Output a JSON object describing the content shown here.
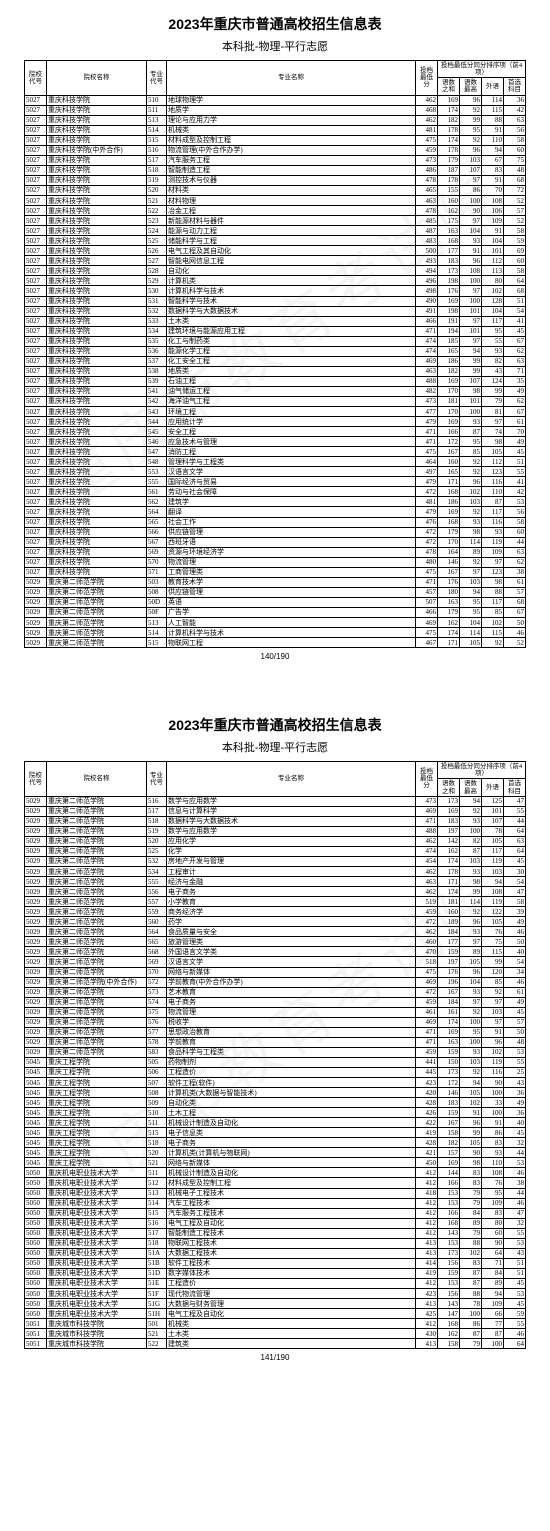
{
  "title": "2023年重庆市普通高校招生信息表",
  "subtitle": "本科批-物理-平行志愿",
  "headers": {
    "school_code": "院校代号",
    "school_name": "院校名称",
    "major_code": "专业代号",
    "major_name": "专业名称",
    "min_score": "投档最低分",
    "group_title": "投档最低分同分排序项（前4项）",
    "s1": "语数之和",
    "s2": "语数最高",
    "s3": "外语",
    "s4": "首选科目"
  },
  "page1_num": "140/190",
  "page2_num": "141/190",
  "watermark": "重庆市教育考试院",
  "page1_rows": [
    [
      "5027",
      "重庆科技学院",
      "510",
      "地球物理学",
      "462",
      "169",
      "96",
      "114",
      "36"
    ],
    [
      "5027",
      "重庆科技学院",
      "511",
      "地质学",
      "468",
      "174",
      "92",
      "115",
      "42"
    ],
    [
      "5027",
      "重庆科技学院",
      "513",
      "理论与应用力学",
      "462",
      "182",
      "99",
      "88",
      "63"
    ],
    [
      "5027",
      "重庆科技学院",
      "514",
      "机械类",
      "481",
      "178",
      "95",
      "91",
      "56"
    ],
    [
      "5027",
      "重庆科技学院",
      "515",
      "材料成型及控制工程",
      "475",
      "174",
      "92",
      "110",
      "58"
    ],
    [
      "5027",
      "重庆科技学院(中外合作)",
      "516",
      "物流管理(中外合作办学)",
      "459",
      "178",
      "96",
      "94",
      "60"
    ],
    [
      "5027",
      "重庆科技学院",
      "517",
      "汽车服务工程",
      "473",
      "179",
      "103",
      "67",
      "75"
    ],
    [
      "5027",
      "重庆科技学院",
      "518",
      "智能制造工程",
      "486",
      "187",
      "107",
      "83",
      "48"
    ],
    [
      "5027",
      "重庆科技学院",
      "519",
      "测控技术与仪器",
      "478",
      "178",
      "97",
      "91",
      "68"
    ],
    [
      "5027",
      "重庆科技学院",
      "520",
      "材料类",
      "465",
      "155",
      "86",
      "70",
      "72"
    ],
    [
      "5027",
      "重庆科技学院",
      "521",
      "材料物理",
      "463",
      "160",
      "100",
      "108",
      "52"
    ],
    [
      "5027",
      "重庆科技学院",
      "522",
      "冶金工程",
      "478",
      "162",
      "90",
      "106",
      "57"
    ],
    [
      "5027",
      "重庆科技学院",
      "523",
      "新能源材料与器件",
      "485",
      "175",
      "97",
      "109",
      "52"
    ],
    [
      "5027",
      "重庆科技学院",
      "524",
      "能源与动力工程",
      "487",
      "163",
      "104",
      "91",
      "58"
    ],
    [
      "5027",
      "重庆科技学院",
      "525",
      "储能科学与工程",
      "483",
      "168",
      "93",
      "104",
      "59"
    ],
    [
      "5027",
      "重庆科技学院",
      "526",
      "电气工程及其自动化",
      "500",
      "177",
      "91",
      "101",
      "69"
    ],
    [
      "5027",
      "重庆科技学院",
      "527",
      "智能电网信息工程",
      "493",
      "183",
      "96",
      "112",
      "60"
    ],
    [
      "5027",
      "重庆科技学院",
      "528",
      "自动化",
      "494",
      "173",
      "108",
      "113",
      "58"
    ],
    [
      "5027",
      "重庆科技学院",
      "529",
      "计算机类",
      "496",
      "198",
      "100",
      "80",
      "64"
    ],
    [
      "5027",
      "重庆科技学院",
      "530",
      "计算机科学与技术",
      "498",
      "176",
      "97",
      "102",
      "68"
    ],
    [
      "5027",
      "重庆科技学院",
      "531",
      "智能科学与技术",
      "490",
      "169",
      "100",
      "128",
      "51"
    ],
    [
      "5027",
      "重庆科技学院",
      "532",
      "数据科学与大数据技术",
      "491",
      "198",
      "101",
      "104",
      "54"
    ],
    [
      "5027",
      "重庆科技学院",
      "533",
      "土木类",
      "466",
      "191",
      "97",
      "117",
      "41"
    ],
    [
      "5027",
      "重庆科技学院",
      "534",
      "建筑环境与能源应用工程",
      "471",
      "194",
      "101",
      "95",
      "45"
    ],
    [
      "5027",
      "重庆科技学院",
      "535",
      "化工与制药类",
      "474",
      "185",
      "97",
      "55",
      "67"
    ],
    [
      "5027",
      "重庆科技学院",
      "536",
      "能源化学工程",
      "474",
      "165",
      "94",
      "93",
      "62"
    ],
    [
      "5027",
      "重庆科技学院",
      "537",
      "化工安全工程",
      "469",
      "186",
      "99",
      "82",
      "63"
    ],
    [
      "5027",
      "重庆科技学院",
      "538",
      "地质类",
      "463",
      "182",
      "99",
      "43",
      "71"
    ],
    [
      "5027",
      "重庆科技学院",
      "539",
      "石油工程",
      "488",
      "169",
      "107",
      "124",
      "35"
    ],
    [
      "5027",
      "重庆科技学院",
      "541",
      "油气储运工程",
      "482",
      "170",
      "98",
      "99",
      "49"
    ],
    [
      "5027",
      "重庆科技学院",
      "542",
      "海洋油气工程",
      "473",
      "181",
      "101",
      "79",
      "62"
    ],
    [
      "5027",
      "重庆科技学院",
      "543",
      "环境工程",
      "477",
      "170",
      "100",
      "81",
      "67"
    ],
    [
      "5027",
      "重庆科技学院",
      "544",
      "应用统计学",
      "479",
      "169",
      "93",
      "97",
      "61"
    ],
    [
      "5027",
      "重庆科技学院",
      "545",
      "安全工程",
      "471",
      "166",
      "87",
      "74",
      "70"
    ],
    [
      "5027",
      "重庆科技学院",
      "546",
      "应急技术与管理",
      "471",
      "172",
      "95",
      "98",
      "49"
    ],
    [
      "5027",
      "重庆科技学院",
      "547",
      "消防工程",
      "475",
      "167",
      "85",
      "105",
      "45"
    ],
    [
      "5027",
      "重庆科技学院",
      "548",
      "管理科学与工程类",
      "464",
      "160",
      "92",
      "112",
      "51"
    ],
    [
      "5027",
      "重庆科技学院",
      "553",
      "汉语言文学",
      "497",
      "165",
      "92",
      "123",
      "55"
    ],
    [
      "5027",
      "重庆科技学院",
      "555",
      "国际经济与贸易",
      "479",
      "171",
      "96",
      "116",
      "41"
    ],
    [
      "5027",
      "重庆科技学院",
      "561",
      "劳动与社会保障",
      "472",
      "168",
      "102",
      "110",
      "42"
    ],
    [
      "5027",
      "重庆科技学院",
      "562",
      "建筑学",
      "481",
      "186",
      "103",
      "87",
      "53"
    ],
    [
      "5027",
      "重庆科技学院",
      "564",
      "翻译",
      "479",
      "169",
      "92",
      "117",
      "56"
    ],
    [
      "5027",
      "重庆科技学院",
      "565",
      "社会工作",
      "476",
      "168",
      "93",
      "116",
      "58"
    ],
    [
      "5027",
      "重庆科技学院",
      "566",
      "供应链管理",
      "472",
      "179",
      "98",
      "93",
      "60"
    ],
    [
      "5027",
      "重庆科技学院",
      "567",
      "西班牙语",
      "472",
      "170",
      "114",
      "119",
      "44"
    ],
    [
      "5027",
      "重庆科技学院",
      "569",
      "资源与环境经济学",
      "478",
      "164",
      "89",
      "109",
      "63"
    ],
    [
      "5027",
      "重庆科技学院",
      "570",
      "物流管理",
      "480",
      "146",
      "92",
      "97",
      "62"
    ],
    [
      "5027",
      "重庆科技学院",
      "571",
      "工商管理类",
      "475",
      "167",
      "97",
      "123",
      "38"
    ],
    [
      "5029",
      "重庆第二师范学院",
      "503",
      "教育技术学",
      "471",
      "176",
      "103",
      "98",
      "61"
    ],
    [
      "5029",
      "重庆第二师范学院",
      "508",
      "供应链管理",
      "457",
      "180",
      "94",
      "88",
      "57"
    ],
    [
      "5029",
      "重庆第二师范学院",
      "50D",
      "英语",
      "507",
      "163",
      "95",
      "117",
      "68"
    ],
    [
      "5029",
      "重庆第二师范学院",
      "50F",
      "广告学",
      "466",
      "179",
      "95",
      "85",
      "67"
    ],
    [
      "5029",
      "重庆第二师范学院",
      "513",
      "人工智能",
      "469",
      "162",
      "104",
      "102",
      "50"
    ],
    [
      "5029",
      "重庆第二师范学院",
      "514",
      "计算机科学与技术",
      "475",
      "174",
      "114",
      "115",
      "46"
    ],
    [
      "5029",
      "重庆第二师范学院",
      "515",
      "物联网工程",
      "467",
      "171",
      "105",
      "92",
      "52"
    ]
  ],
  "page2_rows": [
    [
      "5029",
      "重庆第二师范学院",
      "516",
      "数学与应用数学",
      "473",
      "173",
      "94",
      "125",
      "47"
    ],
    [
      "5029",
      "重庆第二师范学院",
      "517",
      "信息与计算科学",
      "469",
      "169",
      "92",
      "101",
      "55"
    ],
    [
      "5029",
      "重庆第二师范学院",
      "518",
      "数据科学与大数据技术",
      "471",
      "183",
      "93",
      "107",
      "44"
    ],
    [
      "5029",
      "重庆第二师范学院",
      "519",
      "数学与应用数学",
      "488",
      "197",
      "100",
      "78",
      "64"
    ],
    [
      "5029",
      "重庆第二师范学院",
      "520",
      "应用化学",
      "462",
      "142",
      "82",
      "105",
      "63"
    ],
    [
      "5029",
      "重庆第二师范学院",
      "525",
      "化学",
      "474",
      "162",
      "87",
      "117",
      "64"
    ],
    [
      "5029",
      "重庆第二师范学院",
      "532",
      "房地产开发与管理",
      "454",
      "174",
      "103",
      "119",
      "45"
    ],
    [
      "5029",
      "重庆第二师范学院",
      "534",
      "工程审计",
      "462",
      "178",
      "93",
      "103",
      "30"
    ],
    [
      "5029",
      "重庆第二师范学院",
      "555",
      "经济与金融",
      "463",
      "171",
      "98",
      "94",
      "54"
    ],
    [
      "5029",
      "重庆第二师范学院",
      "556",
      "电子商务",
      "462",
      "174",
      "99",
      "108",
      "47"
    ],
    [
      "5029",
      "重庆第二师范学院",
      "557",
      "小学教育",
      "519",
      "181",
      "114",
      "119",
      "58"
    ],
    [
      "5029",
      "重庆第二师范学院",
      "559",
      "商务经济学",
      "459",
      "160",
      "92",
      "122",
      "39"
    ],
    [
      "5029",
      "重庆第二师范学院",
      "560",
      "药学",
      "472",
      "189",
      "96",
      "105",
      "49"
    ],
    [
      "5029",
      "重庆第二师范学院",
      "564",
      "食品质量与安全",
      "462",
      "184",
      "93",
      "76",
      "46"
    ],
    [
      "5029",
      "重庆第二师范学院",
      "565",
      "旅游管理类",
      "460",
      "177",
      "97",
      "75",
      "50"
    ],
    [
      "5029",
      "重庆第二师范学院",
      "568",
      "外国语言文学类",
      "470",
      "159",
      "89",
      "115",
      "40"
    ],
    [
      "5029",
      "重庆第二师范学院",
      "569",
      "汉语言文学",
      "518",
      "197",
      "105",
      "99",
      "54"
    ],
    [
      "5029",
      "重庆第二师范学院",
      "570",
      "网络与新媒体",
      "475",
      "176",
      "96",
      "120",
      "34"
    ],
    [
      "5029",
      "重庆第二师范学院(中外合作)",
      "572",
      "学前教育(中外合作办学)",
      "469",
      "196",
      "104",
      "85",
      "46"
    ],
    [
      "5029",
      "重庆第二师范学院",
      "573",
      "艺术教育",
      "472",
      "167",
      "93",
      "92",
      "61"
    ],
    [
      "5029",
      "重庆第二师范学院",
      "574",
      "电子商务",
      "459",
      "184",
      "97",
      "97",
      "49"
    ],
    [
      "5029",
      "重庆第二师范学院",
      "575",
      "物流管理",
      "461",
      "161",
      "92",
      "103",
      "45"
    ],
    [
      "5029",
      "重庆第二师范学院",
      "576",
      "税收学",
      "469",
      "174",
      "100",
      "97",
      "57"
    ],
    [
      "5029",
      "重庆第二师范学院",
      "577",
      "思想政治教育",
      "471",
      "169",
      "95",
      "91",
      "50"
    ],
    [
      "5029",
      "重庆第二师范学院",
      "578",
      "学前教育",
      "471",
      "163",
      "100",
      "96",
      "48"
    ],
    [
      "5029",
      "重庆第二师范学院",
      "583",
      "食品科学与工程类",
      "459",
      "159",
      "93",
      "102",
      "53"
    ],
    [
      "5045",
      "重庆工程学院",
      "505",
      "药物制剂",
      "441",
      "150",
      "103",
      "119",
      "55"
    ],
    [
      "5045",
      "重庆工程学院",
      "506",
      "工程造价",
      "445",
      "173",
      "92",
      "116",
      "25"
    ],
    [
      "5045",
      "重庆工程学院",
      "507",
      "软件工程(软件)",
      "423",
      "172",
      "94",
      "90",
      "43"
    ],
    [
      "5045",
      "重庆工程学院",
      "508",
      "计算机类(大数据与智能技术)",
      "420",
      "146",
      "105",
      "100",
      "36"
    ],
    [
      "5045",
      "重庆工程学院",
      "509",
      "自动化类",
      "428",
      "183",
      "102",
      "33",
      "49"
    ],
    [
      "5045",
      "重庆工程学院",
      "510",
      "土木工程",
      "426",
      "159",
      "91",
      "100",
      "36"
    ],
    [
      "5045",
      "重庆工程学院",
      "511",
      "机械设计制造及自动化",
      "422",
      "167",
      "96",
      "91",
      "40"
    ],
    [
      "5045",
      "重庆工程学院",
      "515",
      "电子信息类",
      "419",
      "158",
      "99",
      "86",
      "45"
    ],
    [
      "5045",
      "重庆工程学院",
      "518",
      "电子商务",
      "428",
      "182",
      "105",
      "83",
      "32"
    ],
    [
      "5045",
      "重庆工程学院",
      "520",
      "计算机类(计算机与物联网)",
      "421",
      "157",
      "90",
      "93",
      "44"
    ],
    [
      "5045",
      "重庆工程学院",
      "521",
      "网络与新媒体",
      "450",
      "169",
      "98",
      "110",
      "53"
    ],
    [
      "5050",
      "重庆机电职业技术大学",
      "511",
      "机械设计制造及自动化",
      "412",
      "144",
      "83",
      "108",
      "46"
    ],
    [
      "5050",
      "重庆机电职业技术大学",
      "512",
      "材料成型及控制工程",
      "412",
      "166",
      "83",
      "76",
      "38"
    ],
    [
      "5050",
      "重庆机电职业技术大学",
      "513",
      "机械电子工程技术",
      "418",
      "153",
      "79",
      "95",
      "44"
    ],
    [
      "5050",
      "重庆机电职业技术大学",
      "514",
      "汽车工程技术",
      "412",
      "153",
      "79",
      "109",
      "46"
    ],
    [
      "5050",
      "重庆机电职业技术大学",
      "515",
      "汽车服务工程技术",
      "412",
      "166",
      "84",
      "83",
      "47"
    ],
    [
      "5050",
      "重庆机电职业技术大学",
      "516",
      "电气工程及自动化",
      "412",
      "168",
      "89",
      "80",
      "32"
    ],
    [
      "5050",
      "重庆机电职业技术大学",
      "517",
      "智能制造工程技术",
      "412",
      "143",
      "79",
      "60",
      "55"
    ],
    [
      "5050",
      "重庆机电职业技术大学",
      "518",
      "物联网工程技术",
      "413",
      "153",
      "88",
      "90",
      "53"
    ],
    [
      "5050",
      "重庆机电职业技术大学",
      "51A",
      "大数据工程技术",
      "413",
      "173",
      "102",
      "64",
      "43"
    ],
    [
      "5050",
      "重庆机电职业技术大学",
      "51B",
      "软件工程技术",
      "414",
      "156",
      "83",
      "71",
      "51"
    ],
    [
      "5050",
      "重庆机电职业技术大学",
      "51D",
      "数字媒体技术",
      "419",
      "159",
      "87",
      "84",
      "51"
    ],
    [
      "5050",
      "重庆机电职业技术大学",
      "51E",
      "工程造价",
      "412",
      "153",
      "87",
      "89",
      "45"
    ],
    [
      "5050",
      "重庆机电职业技术大学",
      "51F",
      "现代物流管理",
      "423",
      "156",
      "88",
      "94",
      "53"
    ],
    [
      "5050",
      "重庆机电职业技术大学",
      "51G",
      "大数据与财务管理",
      "413",
      "143",
      "78",
      "109",
      "45"
    ],
    [
      "5050",
      "重庆机电职业技术大学",
      "51H",
      "电气工程及自动化",
      "425",
      "147",
      "100",
      "66",
      "59"
    ],
    [
      "5051",
      "重庆城市科技学院",
      "501",
      "机械类",
      "412",
      "168",
      "86",
      "77",
      "55"
    ],
    [
      "5051",
      "重庆城市科技学院",
      "521",
      "土木类",
      "430",
      "162",
      "87",
      "87",
      "46"
    ],
    [
      "5051",
      "重庆城市科技学院",
      "522",
      "建筑类",
      "413",
      "158",
      "79",
      "100",
      "64"
    ]
  ]
}
